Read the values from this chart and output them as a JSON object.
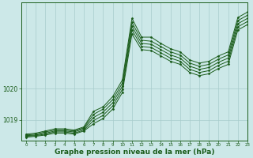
{
  "background_color": "#cce8e8",
  "plot_bg_color": "#cce8e8",
  "line_color": "#1a5c1a",
  "marker_color": "#1a5c1a",
  "grid_color": "#a8cccc",
  "xlabel": "Graphe pression niveau de la mer (hPa)",
  "xlabel_fontsize": 6.5,
  "xlim": [
    -0.5,
    23
  ],
  "ylim": [
    1018.35,
    1022.75
  ],
  "yticks": [
    1019,
    1020
  ],
  "xticks": [
    0,
    1,
    2,
    3,
    4,
    5,
    6,
    7,
    8,
    9,
    10,
    11,
    12,
    13,
    14,
    15,
    16,
    17,
    18,
    19,
    20,
    21,
    22,
    23
  ],
  "series": [
    [
      1018.55,
      1018.58,
      1018.65,
      1018.72,
      1018.72,
      1018.68,
      1018.78,
      1019.28,
      1019.42,
      1019.75,
      1020.28,
      1022.25,
      1021.65,
      1021.65,
      1021.45,
      1021.28,
      1021.18,
      1020.92,
      1020.82,
      1020.88,
      1021.05,
      1021.18,
      1022.28,
      1022.45
    ],
    [
      1018.52,
      1018.55,
      1018.62,
      1018.68,
      1018.68,
      1018.65,
      1018.75,
      1019.18,
      1019.35,
      1019.65,
      1020.18,
      1022.12,
      1021.55,
      1021.52,
      1021.35,
      1021.18,
      1021.08,
      1020.82,
      1020.72,
      1020.78,
      1020.95,
      1021.08,
      1022.18,
      1022.35
    ],
    [
      1018.5,
      1018.52,
      1018.58,
      1018.65,
      1018.65,
      1018.62,
      1018.72,
      1019.08,
      1019.25,
      1019.55,
      1020.08,
      1022.0,
      1021.45,
      1021.42,
      1021.25,
      1021.08,
      1020.98,
      1020.72,
      1020.62,
      1020.68,
      1020.85,
      1020.98,
      1022.08,
      1022.25
    ],
    [
      1018.48,
      1018.5,
      1018.55,
      1018.62,
      1018.62,
      1018.58,
      1018.68,
      1018.98,
      1019.15,
      1019.45,
      1019.98,
      1021.88,
      1021.35,
      1021.32,
      1021.15,
      1020.98,
      1020.88,
      1020.62,
      1020.52,
      1020.58,
      1020.75,
      1020.88,
      1021.98,
      1022.15
    ],
    [
      1018.45,
      1018.48,
      1018.52,
      1018.58,
      1018.58,
      1018.55,
      1018.65,
      1018.88,
      1019.05,
      1019.35,
      1019.88,
      1021.75,
      1021.25,
      1021.22,
      1021.05,
      1020.88,
      1020.78,
      1020.52,
      1020.42,
      1020.48,
      1020.65,
      1020.78,
      1021.88,
      1022.05
    ]
  ]
}
